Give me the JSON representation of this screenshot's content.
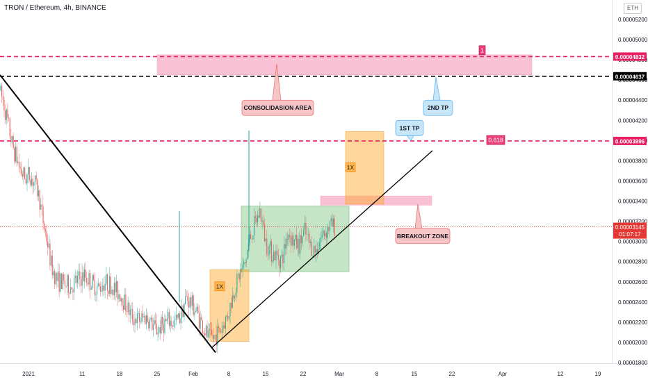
{
  "header": {
    "symbol": "TRON / Ethereum, 4h, BINANCE",
    "currency_button": "ETH"
  },
  "colors": {
    "up": "#26a69a",
    "down": "#ef5350",
    "target_line": "#e91e63",
    "resistance_line": "#000000",
    "pink_zone": "#f48fb1",
    "green_zone": "#66bb6a",
    "orange_zone": "#ffa726",
    "callout_pink": "#f7c5c5",
    "callout_blue": "#c7e6f7",
    "current_price_bg": "#e53935"
  },
  "chart_data": {
    "type": "candlestick",
    "symbol": "TRON / Ethereum",
    "interval": "4h",
    "exchange": "BINANCE",
    "y_axis": {
      "range": [
        1.8e-05,
        5.3e-05
      ],
      "ticks": [
        "0.00005200",
        "0.00005000",
        "0.00004800",
        "0.00004600",
        "0.00004400",
        "0.00004200",
        "0.00004000",
        "0.00003800",
        "0.00003600",
        "0.00003400",
        "0.00003200",
        "0.00003000",
        "0.00002800",
        "0.00002600",
        "0.00002400",
        "0.00002200",
        "0.00002000",
        "0.00001800"
      ]
    },
    "x_axis": {
      "ticks": [
        "2021",
        "11",
        "18",
        "25",
        "Feb",
        "8",
        "15",
        "22",
        "Mar",
        "8",
        "15",
        "22",
        "Apr",
        "12",
        "19"
      ]
    },
    "price_path": [
      [
        0,
        4.5e-05
      ],
      [
        6,
        4.35e-05
      ],
      [
        12,
        4.15e-05
      ],
      [
        18,
        3.95e-05
      ],
      [
        24,
        3.82e-05
      ],
      [
        30,
        3.7e-05
      ],
      [
        36,
        3.63e-05
      ],
      [
        42,
        3.66e-05
      ],
      [
        50,
        3.58e-05
      ],
      [
        56,
        3.45e-05
      ],
      [
        62,
        3.2e-05
      ],
      [
        68,
        3e-05
      ],
      [
        74,
        2.75e-05
      ],
      [
        82,
        2.62e-05
      ],
      [
        92,
        2.58e-05
      ],
      [
        102,
        2.55e-05
      ],
      [
        112,
        2.62e-05
      ],
      [
        122,
        2.66e-05
      ],
      [
        132,
        2.59e-05
      ],
      [
        142,
        2.53e-05
      ],
      [
        150,
        2.6e-05
      ],
      [
        158,
        2.57e-05
      ],
      [
        166,
        2.52e-05
      ],
      [
        174,
        2.47e-05
      ],
      [
        182,
        2.36e-05
      ],
      [
        190,
        2.25e-05
      ],
      [
        200,
        2.22e-05
      ],
      [
        210,
        2.25e-05
      ],
      [
        218,
        2.18e-05
      ],
      [
        226,
        2.12e-05
      ],
      [
        234,
        2.18e-05
      ],
      [
        242,
        2.21e-05
      ],
      [
        250,
        2.19e-05
      ],
      [
        258,
        2.24e-05
      ],
      [
        262,
        2.32e-05
      ],
      [
        268,
        2.44e-05
      ],
      [
        276,
        2.38e-05
      ],
      [
        284,
        2.28e-05
      ],
      [
        292,
        2.15e-05
      ],
      [
        300,
        2.04e-05
      ],
      [
        308,
        2.05e-05
      ],
      [
        318,
        2.13e-05
      ],
      [
        328,
        2.28e-05
      ],
      [
        338,
        2.55e-05
      ],
      [
        346,
        2.7e-05
      ],
      [
        352,
        2.76e-05
      ],
      [
        358,
        3e-05
      ],
      [
        366,
        3.16e-05
      ],
      [
        374,
        3.3e-05
      ],
      [
        382,
        3e-05
      ],
      [
        390,
        2.9e-05
      ],
      [
        398,
        2.85e-05
      ],
      [
        406,
        2.82e-05
      ],
      [
        414,
        3.1e-05
      ],
      [
        422,
        3e-05
      ],
      [
        430,
        2.96e-05
      ],
      [
        438,
        3.1e-05
      ],
      [
        446,
        2.96e-05
      ],
      [
        454,
        2.9e-05
      ],
      [
        462,
        3.05e-05
      ],
      [
        470,
        3.12e-05
      ],
      [
        476,
        3.16e-05
      ],
      [
        482,
        3.14e-05
      ]
    ],
    "last_price": "0.00003145",
    "countdown": "01:07:17",
    "wicks": [
      {
        "x": 258,
        "high": 3.3e-05,
        "low": 2.4e-05
      },
      {
        "x": 358,
        "high": 4.1e-05,
        "low": 2.9e-05
      }
    ],
    "horizontal_lines": [
      {
        "price": 4.832e-05,
        "label": "0.00004832",
        "style": "dashed",
        "color": "#e91e63"
      },
      {
        "price": 4.637e-05,
        "label": "0.00004637",
        "style": "dashed",
        "color": "#000000"
      },
      {
        "price": 3.996e-05,
        "label": "0.00003996",
        "style": "dashed",
        "color": "#e91e63"
      }
    ],
    "trendlines": [
      {
        "from": [
          0,
          4.65e-05
        ],
        "to": [
          310,
          1.9e-05
        ],
        "width": 2
      },
      {
        "from": [
          305,
          1.95e-05
        ],
        "to": [
          622,
          3.9e-05
        ],
        "width": 1.3
      }
    ],
    "zones": [
      {
        "name": "consolidation",
        "x1": 226,
        "x2": 765,
        "top": 4.85e-05,
        "bottom": 4.65e-05,
        "kind": "pink"
      },
      {
        "name": "breakout",
        "x1": 461,
        "x2": 621,
        "top": 3.45e-05,
        "bottom": 3.36e-05,
        "kind": "pink"
      },
      {
        "name": "range-box",
        "x1": 347,
        "x2": 502,
        "top": 3.35e-05,
        "bottom": 2.7e-05,
        "kind": "green"
      },
      {
        "name": "orange-1x-lower",
        "x1": 302,
        "x2": 358,
        "top": 2.72e-05,
        "bottom": 2.01e-05,
        "kind": "orange"
      },
      {
        "name": "orange-1x-upper",
        "x1": 497,
        "x2": 552,
        "top": 4.09e-05,
        "bottom": 3.37e-05,
        "kind": "orange"
      }
    ],
    "annotations": [
      {
        "text": "CONSOLIDASION AREA",
        "style": "pink",
        "x": 348,
        "y": 4.4e-05,
        "w": 103
      },
      {
        "text": "2ND TP",
        "style": "blue",
        "x": 609,
        "y": 4.4e-05,
        "w": 42
      },
      {
        "text": "1ST TP",
        "style": "blue",
        "x": 569,
        "y": 4.2e-05,
        "w": 40
      },
      {
        "text": "BREAKOUT ZONE",
        "style": "pink",
        "x": 569,
        "y": 3.13e-05,
        "w": 78
      },
      {
        "text": "1X",
        "style": "orange-tag",
        "x": 309,
        "y": 2.6e-05,
        "w": 14
      },
      {
        "text": "1X",
        "style": "orange-tag",
        "x": 497,
        "y": 3.78e-05,
        "w": 14
      },
      {
        "text": "0.618",
        "style": "pink-tag",
        "x": 700,
        "y": 4.05e-05,
        "w": 26
      },
      {
        "text": "1",
        "style": "pink-tag",
        "x": 689,
        "y": 4.94e-05,
        "w": 9
      }
    ]
  }
}
